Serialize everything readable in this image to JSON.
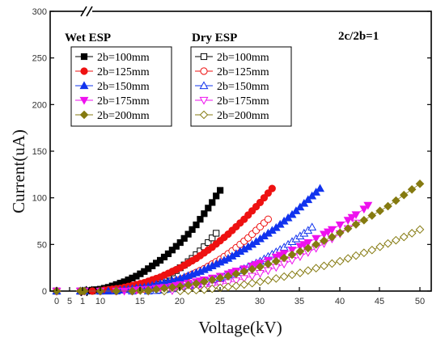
{
  "chart_data": {
    "type": "scatter",
    "xlabel": "Voltage(kV)",
    "ylabel": "Current(uA)",
    "annotation": "2c/2b=1",
    "x_ticks": [
      "0",
      "5",
      "1",
      "10",
      "15",
      "20",
      "25",
      "30",
      "35",
      "40",
      "45",
      "50"
    ],
    "y_ticks": [
      "0",
      "50",
      "100",
      "150",
      "200",
      "250",
      "300"
    ],
    "ylim": [
      0,
      300
    ],
    "xlim_main": [
      7,
      50
    ],
    "legend_groups": [
      {
        "title": "Wet ESP",
        "filled": true
      },
      {
        "title": "Dry ESP",
        "filled": false
      }
    ],
    "series": [
      {
        "name": "2b=100mm",
        "group": "Wet ESP",
        "marker": "square",
        "color": "#000000",
        "x": [
          0,
          2,
          6,
          7.5,
          8,
          8.5,
          9,
          9.5,
          10,
          10.5,
          11,
          11.5,
          12,
          12.5,
          13,
          13.5,
          14,
          14.5,
          15,
          15.5,
          16,
          16.5,
          17,
          17.5,
          18,
          18.5,
          19,
          19.5,
          20,
          20.5,
          21,
          21.5,
          22,
          22.5,
          23,
          23.5,
          24,
          24.5,
          25
        ],
        "y": [
          0,
          0,
          0,
          0,
          0,
          0.5,
          1,
          1.5,
          2,
          3,
          4,
          5.5,
          7,
          8.5,
          10,
          12,
          14,
          16,
          18.5,
          21,
          24,
          27,
          30,
          33,
          36.5,
          40,
          44,
          48,
          52,
          56.5,
          61,
          66,
          71,
          77,
          83,
          89,
          95,
          102,
          108
        ]
      },
      {
        "name": "2b=125mm",
        "group": "Wet ESP",
        "marker": "circle",
        "color": "#ee1111",
        "x": [
          0,
          2,
          6,
          7.5,
          8,
          9,
          10,
          10.5,
          11,
          11.5,
          12,
          12.5,
          13,
          13.5,
          14,
          14.5,
          15,
          15.5,
          16,
          16.5,
          17,
          17.5,
          18,
          18.5,
          19,
          19.5,
          20,
          20.5,
          21,
          21.5,
          22,
          22.5,
          23,
          23.5,
          24,
          24.5,
          25,
          25.5,
          26,
          26.5,
          27,
          27.5,
          28,
          28.5,
          29,
          29.5,
          30,
          30.5,
          31,
          31.5
        ],
        "y": [
          0,
          0,
          0,
          0,
          0,
          0,
          0.5,
          1,
          1.5,
          2,
          2.5,
          3,
          4,
          5,
          6,
          7,
          8,
          9,
          10.5,
          12,
          13.5,
          15,
          17,
          19,
          21,
          23,
          25,
          27.5,
          30,
          32.5,
          35,
          38,
          41,
          44,
          47,
          50.5,
          54,
          57.5,
          61,
          65,
          69,
          73,
          77,
          81.5,
          86,
          90.5,
          95,
          100,
          105,
          110
        ]
      },
      {
        "name": "2b=150mm",
        "group": "Wet ESP",
        "marker": "triangle-up",
        "color": "#1133ee",
        "x": [
          0,
          2,
          6,
          7.5,
          8,
          10,
          11,
          12,
          12.5,
          13,
          13.5,
          14,
          14.5,
          15,
          15.5,
          16,
          16.5,
          17,
          17.5,
          18,
          18.5,
          19,
          19.5,
          20,
          20.5,
          21,
          21.5,
          22,
          22.5,
          23,
          23.5,
          24,
          24.5,
          25,
          25.5,
          26,
          26.5,
          27,
          27.5,
          28,
          28.5,
          29,
          29.5,
          30,
          30.5,
          31,
          31.5,
          32,
          32.5,
          33,
          33.5,
          34,
          34.5,
          35,
          35.5,
          36,
          36.5,
          37,
          37.5
        ],
        "y": [
          0,
          0,
          0,
          0,
          0,
          0,
          0,
          0.5,
          1,
          1.5,
          2,
          2.5,
          3,
          3.5,
          4,
          5,
          6,
          7,
          8,
          9,
          10,
          11,
          12,
          13.5,
          15,
          16.5,
          18,
          19.5,
          21,
          23,
          25,
          27,
          29,
          31,
          33,
          35,
          37.5,
          40,
          42.5,
          45,
          47.5,
          50,
          53,
          56,
          59,
          62,
          65,
          68,
          71.5,
          75,
          78.5,
          82,
          86,
          90,
          94,
          98,
          102,
          106,
          110
        ]
      },
      {
        "name": "2b=175mm",
        "group": "Wet ESP",
        "marker": "triangle-down",
        "color": "#ee11ee",
        "x": [
          0,
          2,
          6,
          7.5,
          8,
          10,
          12,
          13,
          14,
          14.5,
          15,
          16,
          17,
          17.5,
          18,
          19,
          19.5,
          20,
          21,
          22,
          22.5,
          23,
          24,
          25,
          26,
          26.5,
          27,
          28,
          29,
          29.5,
          30,
          31,
          32,
          32.5,
          33,
          34,
          35,
          35.5,
          36,
          37,
          38,
          38.5,
          39,
          40,
          41,
          41.5,
          42,
          43,
          43.5
        ],
        "y": [
          0,
          0,
          0,
          0,
          0,
          0,
          0,
          0,
          0.5,
          1,
          1.5,
          2,
          3,
          3.5,
          4,
          5,
          6,
          7,
          8.5,
          10,
          11,
          12,
          14,
          16,
          18.5,
          20,
          21.5,
          24,
          27,
          28.5,
          30,
          33,
          36.5,
          38.5,
          40.5,
          44,
          48,
          50,
          52,
          56.5,
          61,
          63.5,
          66,
          71,
          76,
          79,
          82,
          88,
          92
        ]
      },
      {
        "name": "2b=200mm",
        "group": "Wet ESP",
        "marker": "diamond",
        "color": "#857a10",
        "x": [
          0,
          2,
          6,
          7.5,
          8,
          10,
          12,
          14,
          15,
          16,
          17,
          18,
          19,
          20,
          21,
          22,
          23,
          24,
          25,
          26,
          27,
          28,
          29,
          30,
          31,
          32,
          33,
          34,
          35,
          36,
          37,
          38,
          39,
          40,
          41,
          42,
          43,
          44,
          45,
          46,
          47,
          48,
          49,
          50
        ],
        "y": [
          0,
          0,
          0,
          0,
          0,
          0,
          0,
          0,
          0.5,
          1,
          2,
          3,
          4,
          5,
          6.5,
          8,
          10,
          12,
          14,
          16,
          18.5,
          21,
          23.5,
          26,
          29,
          32,
          35.5,
          39,
          42.5,
          46,
          50,
          54,
          58,
          62.5,
          67,
          71.5,
          76,
          81,
          86,
          91,
          97,
          103,
          109,
          115
        ]
      },
      {
        "name": "2b=100mm",
        "group": "Dry ESP",
        "marker": "square",
        "color": "#000000",
        "x": [
          0,
          2,
          6,
          7.5,
          8,
          9,
          10,
          11,
          12,
          12.5,
          13,
          13.5,
          14,
          14.5,
          15,
          15.5,
          16,
          16.5,
          17,
          17.5,
          18,
          18.5,
          19,
          19.5,
          20,
          20.5,
          21,
          21.5,
          22,
          22.5,
          23,
          23.5,
          24,
          24.5
        ],
        "y": [
          0,
          0,
          0,
          0,
          0,
          0,
          0,
          0,
          1,
          1.5,
          2,
          3,
          4,
          5,
          6,
          7,
          8.5,
          10,
          11.5,
          13,
          15,
          17,
          19.5,
          22,
          25,
          28,
          31.5,
          35,
          39,
          43,
          47.5,
          52,
          57,
          62
        ]
      },
      {
        "name": "2b=125mm",
        "group": "Dry ESP",
        "marker": "circle",
        "color": "#ee1111",
        "x": [
          0,
          2,
          6,
          7.5,
          8,
          10,
          12,
          14,
          14.5,
          15,
          15.5,
          16,
          16.5,
          17,
          17.5,
          18,
          18.5,
          19,
          19.5,
          20,
          20.5,
          21,
          21.5,
          22,
          22.5,
          23,
          23.5,
          24,
          24.5,
          25,
          25.5,
          26,
          26.5,
          27,
          27.5,
          28,
          28.5,
          29,
          29.5,
          30,
          30.5,
          31
        ],
        "y": [
          0,
          0,
          0,
          0,
          0,
          0,
          0,
          0,
          1,
          1.5,
          2,
          3,
          4,
          5,
          6,
          7,
          8,
          9.5,
          11,
          12.5,
          14,
          16,
          18,
          20,
          22,
          24,
          26.5,
          29,
          31.5,
          34,
          37,
          40,
          43,
          46.5,
          50,
          53.5,
          57,
          61,
          65,
          69,
          73,
          77
        ]
      },
      {
        "name": "2b=150mm",
        "group": "Dry ESP",
        "marker": "triangle-up",
        "color": "#1133ee",
        "x": [
          0,
          2,
          6,
          7.5,
          8,
          10,
          12,
          14,
          16,
          17,
          17.5,
          18,
          18.5,
          19,
          19.5,
          20,
          20.5,
          21,
          21.5,
          22,
          22.5,
          23,
          23.5,
          24,
          24.5,
          25,
          25.5,
          26,
          26.5,
          27,
          27.5,
          28,
          28.5,
          29,
          29.5,
          30,
          30.5,
          31,
          31.5,
          32,
          32.5,
          33,
          33.5,
          34,
          34.5,
          35,
          35.5,
          36,
          36.5
        ],
        "y": [
          0,
          0,
          0,
          0,
          0,
          0,
          0,
          0,
          0,
          0.5,
          1,
          1.5,
          2,
          2.5,
          3,
          3.5,
          4,
          5,
          6,
          7,
          8,
          9,
          10,
          11,
          12.5,
          14,
          15.5,
          17,
          18.5,
          20,
          22,
          24,
          26,
          28,
          30,
          32,
          34.5,
          37,
          39.5,
          42,
          44.5,
          47,
          50,
          53,
          56,
          59,
          62,
          65,
          68.5
        ]
      },
      {
        "name": "2b=175mm",
        "group": "Dry ESP",
        "marker": "triangle-down",
        "color": "#ee11ee",
        "x": [
          0,
          2,
          6,
          7.5,
          8,
          10,
          12,
          14,
          16,
          18,
          19,
          20,
          21,
          22,
          23,
          24,
          25,
          26,
          27,
          28,
          29,
          30,
          31,
          32,
          33,
          34,
          35,
          36,
          37,
          38,
          39,
          40,
          41,
          42
        ],
        "y": [
          0,
          0,
          0,
          0,
          0,
          0,
          0,
          0,
          0,
          0,
          0.5,
          1,
          2,
          3,
          4,
          5.5,
          7,
          9,
          11,
          13.5,
          16,
          19,
          22,
          25.5,
          29,
          33,
          37,
          41.5,
          46,
          51,
          56,
          61.5,
          67,
          73
        ]
      },
      {
        "name": "2b=200mm",
        "group": "Dry ESP",
        "marker": "diamond",
        "color": "#857a10",
        "x": [
          0,
          2,
          6,
          7.5,
          8,
          10,
          12,
          14,
          16,
          18,
          20,
          21,
          22,
          23,
          24,
          25,
          26,
          27,
          28,
          29,
          30,
          31,
          32,
          33,
          34,
          35,
          36,
          37,
          38,
          39,
          40,
          41,
          42,
          43,
          44,
          45,
          46,
          47,
          48,
          49,
          50
        ],
        "y": [
          0,
          0,
          0,
          0,
          0,
          0,
          0,
          0,
          0,
          0,
          0,
          0.5,
          1,
          1.5,
          2.5,
          3.5,
          4.5,
          5.5,
          7,
          8.5,
          10,
          11.5,
          13.5,
          15.5,
          17.5,
          19.5,
          22,
          24.5,
          27,
          29.5,
          32,
          35,
          38,
          41,
          44,
          47.5,
          51,
          54.5,
          58,
          62,
          66
        ]
      }
    ]
  }
}
